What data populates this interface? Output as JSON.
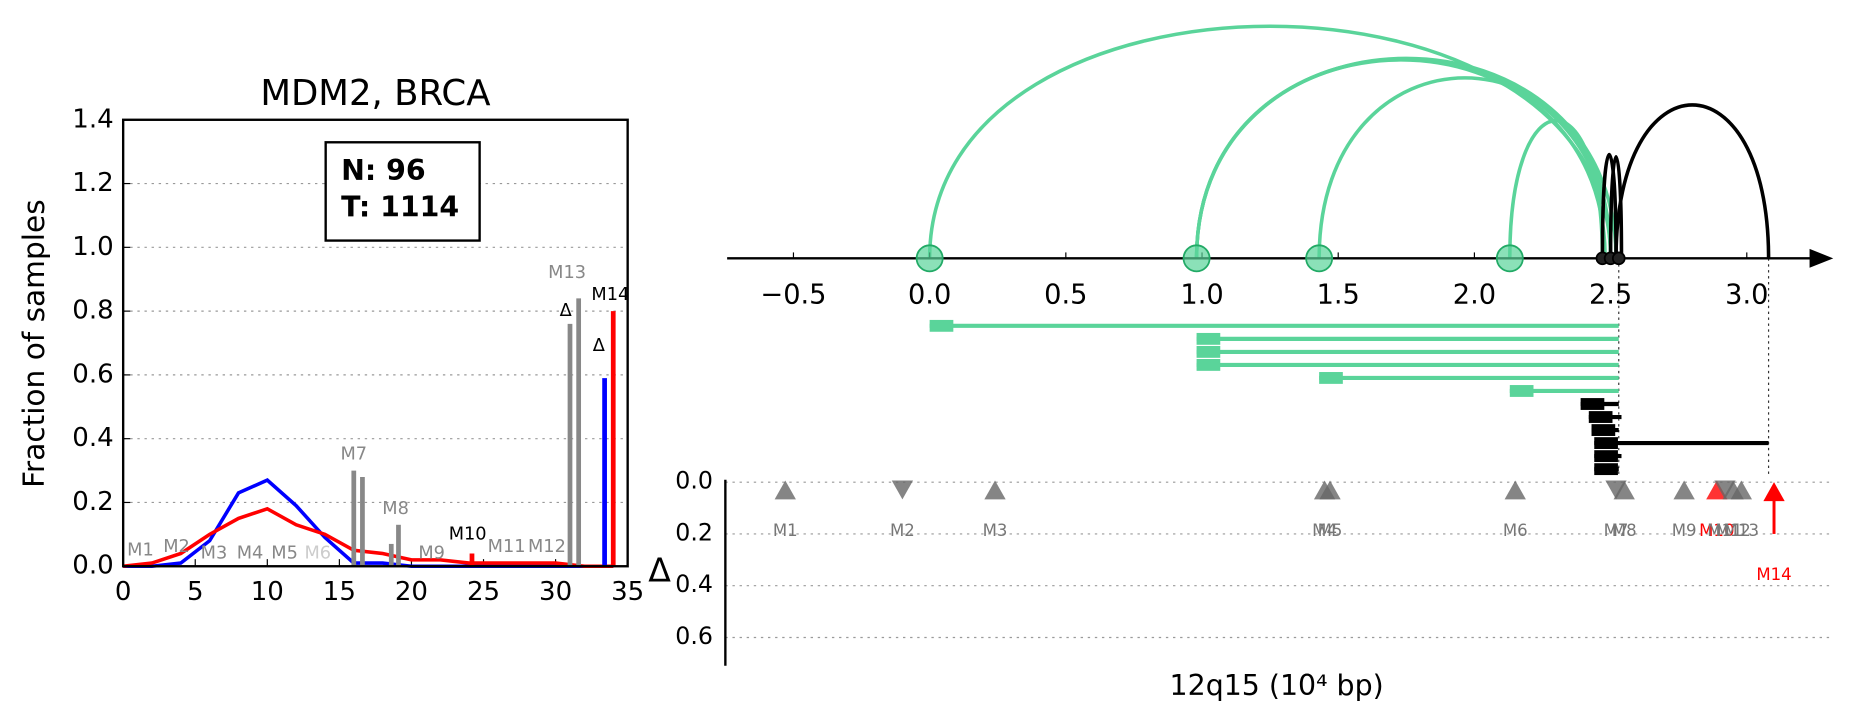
{
  "chart_data": [
    {
      "type": "line",
      "title": "MDM2, BRCA",
      "ylabel": "Fraction of samples",
      "xlim": [
        0,
        35
      ],
      "ylim": [
        0,
        1.4
      ],
      "xticks": [
        0,
        5,
        10,
        15,
        20,
        25,
        30,
        35
      ],
      "yticks": [
        {
          "value": 0,
          "label": "0.0"
        },
        0.2,
        0.4,
        0.6,
        0.8,
        {
          "value": 1,
          "label": "1.0"
        },
        1.2,
        1.4
      ],
      "grid": true,
      "info_box": [
        "N: 96",
        "T: 1114"
      ],
      "x": [
        0,
        2,
        4,
        6,
        8,
        10,
        12,
        14,
        16,
        18,
        20,
        22,
        24,
        26,
        28,
        30,
        32,
        34
      ],
      "series": [
        {
          "color": "#0000ff",
          "values": [
            0,
            0,
            0.01,
            0.08,
            0.23,
            0.27,
            0.19,
            0.09,
            0.01,
            0.01,
            0,
            0,
            0,
            0,
            0,
            0,
            0,
            0
          ]
        },
        {
          "color": "#ff0000",
          "values": [
            0,
            0.01,
            0.04,
            0.1,
            0.15,
            0.18,
            0.13,
            0.1,
            0.05,
            0.04,
            0.02,
            0.02,
            0.01,
            0.01,
            0.01,
            0.01,
            0,
            0
          ]
        }
      ],
      "bars": {
        "x": [
          16,
          16.6,
          18.6,
          19.1,
          24.2,
          31,
          31.6,
          33.4,
          34
        ],
        "values": [
          0.3,
          0.28,
          0.07,
          0.13,
          0.04,
          0.76,
          0.84,
          0.59,
          0.8
        ],
        "colors": [
          "#888888",
          "#888888",
          "#888888",
          "#888888",
          "#ff0000",
          "#888888",
          "#888888",
          "#0000ff",
          "#ff0000"
        ]
      },
      "annotations": [
        {
          "text": "M1",
          "x": 1.2,
          "y": 0.05,
          "color": "#888888"
        },
        {
          "text": "M2",
          "x": 3.7,
          "y": 0.06,
          "color": "#888888"
        },
        {
          "text": "M3",
          "x": 6.3,
          "y": 0.04,
          "color": "#888888"
        },
        {
          "text": "M4",
          "x": 8.8,
          "y": 0.04,
          "color": "#888888"
        },
        {
          "text": "M5",
          "x": 11.2,
          "y": 0.04,
          "color": "#888888"
        },
        {
          "text": "M6",
          "x": 13.5,
          "y": 0.04,
          "color": "#cccccc"
        },
        {
          "text": "M7",
          "x": 16,
          "y": 0.35,
          "color": "#888888"
        },
        {
          "text": "M8",
          "x": 18.9,
          "y": 0.18,
          "color": "#888888"
        },
        {
          "text": "M9",
          "x": 21.4,
          "y": 0.04,
          "color": "#888888"
        },
        {
          "text": "M10",
          "x": 23.9,
          "y": 0.1,
          "color": "#000000"
        },
        {
          "text": "M11",
          "x": 26.6,
          "y": 0.06,
          "color": "#888888"
        },
        {
          "text": "M12",
          "x": 29.4,
          "y": 0.06,
          "color": "#888888"
        },
        {
          "text": "M13",
          "x": 30.8,
          "y": 0.92,
          "color": "#888888"
        },
        {
          "text": "M14",
          "x": 33.8,
          "y": 0.85,
          "color": "#000000"
        },
        {
          "text": "Δ",
          "x": 30.7,
          "y": 0.8,
          "color": "#000000"
        },
        {
          "text": "Δ",
          "x": 33,
          "y": 0.69,
          "color": "#000000"
        }
      ]
    },
    {
      "type": "arc",
      "xlabel": "12q15 (10⁴ bp)",
      "ylabel": "Δ",
      "xlim": [
        -0.75,
        3.3
      ],
      "xticks": [
        {
          "value": -0.5,
          "label": "−0.5"
        },
        {
          "value": 0,
          "label": "0.0"
        },
        0.5,
        {
          "value": 1,
          "label": "1.0"
        },
        1.5,
        {
          "value": 2,
          "label": "2.0"
        },
        2.5,
        {
          "value": 3,
          "label": "3.0"
        }
      ],
      "ylim": [
        0,
        0.7
      ],
      "yticks": [
        {
          "value": 0,
          "label": "0.0"
        },
        0.2,
        0.4,
        0.6
      ],
      "nodes": [
        {
          "x": 0,
          "color": "#5ad49a"
        },
        {
          "x": 0.98,
          "color": "#5ad49a"
        },
        {
          "x": 1.43,
          "color": "#5ad49a"
        },
        {
          "x": 2.13,
          "color": "#5ad49a"
        },
        {
          "x": 2.47,
          "color": "#222222"
        },
        {
          "x": 2.5,
          "color": "#222222"
        },
        {
          "x": 2.53,
          "color": "#222222"
        }
      ],
      "arcs": [
        {
          "from": 0,
          "to": 2.5,
          "color": "#5ad49a"
        },
        {
          "from": 0.98,
          "to": 2.5,
          "color": "#5ad49a"
        },
        {
          "from": 0.98,
          "to": 2.52,
          "color": "#5ad49a"
        },
        {
          "from": 0.98,
          "to": 2.48,
          "color": "#5ad49a"
        },
        {
          "from": 1.43,
          "to": 2.5,
          "color": "#5ad49a"
        },
        {
          "from": 2.13,
          "to": 2.47,
          "color": "#5ad49a"
        },
        {
          "from": 2.47,
          "to": 2.52,
          "color": "#000000"
        },
        {
          "from": 2.5,
          "to": 2.54,
          "color": "#000000"
        },
        {
          "from": 2.52,
          "to": 3.08,
          "color": "#000000"
        }
      ],
      "intervals": [
        {
          "start": 0,
          "end": 2.53,
          "color": "#5ad49a"
        },
        {
          "start": 0.98,
          "end": 2.53,
          "color": "#5ad49a"
        },
        {
          "start": 0.98,
          "end": 2.53,
          "color": "#5ad49a"
        },
        {
          "start": 0.98,
          "end": 2.53,
          "color": "#5ad49a"
        },
        {
          "start": 1.43,
          "end": 2.53,
          "color": "#5ad49a"
        },
        {
          "start": 2.13,
          "end": 2.53,
          "color": "#5ad49a"
        },
        {
          "start": 2.39,
          "end": 2.53,
          "color": "#000000"
        },
        {
          "start": 2.42,
          "end": 2.54,
          "color": "#000000"
        },
        {
          "start": 2.43,
          "end": 2.53,
          "color": "#000000"
        },
        {
          "start": 2.44,
          "end": 3.08,
          "color": "#000000"
        },
        {
          "start": 2.44,
          "end": 2.54,
          "color": "#000000"
        },
        {
          "start": 2.44,
          "end": 2.53,
          "color": "#000000"
        }
      ],
      "vlines": [
        2.53,
        3.08
      ],
      "markers": [
        {
          "label": "M1",
          "x": -0.53,
          "delta": 0.03,
          "direction": "up",
          "color": "#666666"
        },
        {
          "label": "M2",
          "x": -0.1,
          "delta": 0.03,
          "direction": "down",
          "color": "#666666"
        },
        {
          "label": "M3",
          "x": 0.24,
          "delta": 0.03,
          "direction": "up",
          "color": "#666666"
        },
        {
          "label": "M4",
          "x": 1.45,
          "delta": 0.03,
          "direction": "up",
          "color": "#666666"
        },
        {
          "label": "M5",
          "x": 1.47,
          "delta": 0.03,
          "direction": "up",
          "color": "#666666"
        },
        {
          "label": "M6",
          "x": 2.15,
          "delta": 0.03,
          "direction": "up",
          "color": "#666666"
        },
        {
          "label": "M7",
          "x": 2.52,
          "delta": 0.03,
          "direction": "down",
          "color": "#666666"
        },
        {
          "label": "M8",
          "x": 2.55,
          "delta": 0.03,
          "direction": "up",
          "color": "#666666"
        },
        {
          "label": "M9",
          "x": 2.77,
          "delta": 0.03,
          "direction": "up",
          "color": "#666666"
        },
        {
          "label": "M10",
          "x": 2.89,
          "delta": 0.03,
          "direction": "up",
          "color": "#ff0000"
        },
        {
          "label": "M11",
          "x": 2.92,
          "delta": 0.03,
          "direction": "down",
          "color": "#666666"
        },
        {
          "label": "M12",
          "x": 2.95,
          "delta": 0.03,
          "direction": "up",
          "color": "#666666"
        },
        {
          "label": "M13",
          "x": 2.98,
          "delta": 0.03,
          "direction": "up",
          "color": "#666666"
        },
        {
          "label": "M14",
          "x": 3.1,
          "delta": 0.2,
          "direction": "up",
          "color": "#ff0000"
        }
      ]
    }
  ]
}
